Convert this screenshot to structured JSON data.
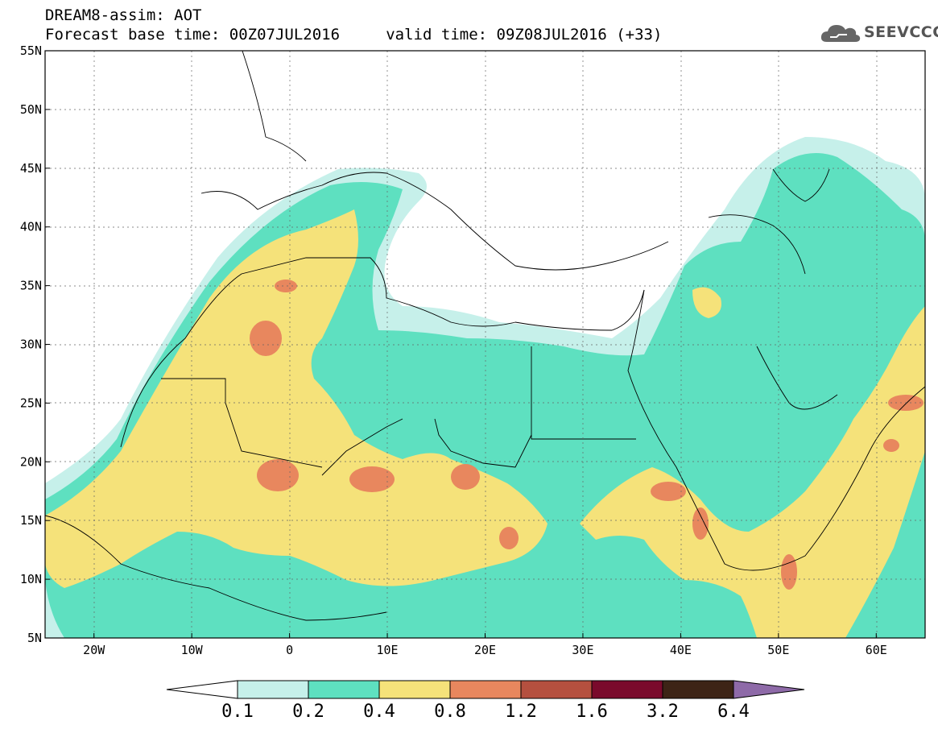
{
  "header": {
    "line1": "DREAM8-assim: AOT",
    "line2": "Forecast base time: 00Z07JUL2016     valid time: 09Z08JUL2016 (+33)"
  },
  "logo": {
    "text": "SEEVCCC",
    "icon": "cloud-logo-icon"
  },
  "map": {
    "lat_labels": [
      "55N",
      "50N",
      "45N",
      "40N",
      "35N",
      "30N",
      "25N",
      "20N",
      "15N",
      "10N",
      "5N"
    ],
    "lon_labels": [
      "20W",
      "10W",
      "0",
      "10E",
      "20E",
      "30E",
      "40E",
      "50E",
      "60E"
    ],
    "lat_range": [
      5,
      55
    ],
    "lon_range": [
      -25,
      65
    ]
  },
  "colorbar": {
    "labels": [
      "0.1",
      "0.2",
      "0.4",
      "0.8",
      "1.2",
      "1.6",
      "3.2",
      "6.4"
    ],
    "colors": [
      "#ffffff",
      "#c6f0ea",
      "#5ee0c0",
      "#f5e27a",
      "#e8875e",
      "#b5503f",
      "#7a0a2c",
      "#3d2416",
      "#8e6aa8"
    ]
  },
  "colors": {
    "light_teal": "#c6f0ea",
    "teal": "#5ee0c0",
    "yellow": "#f5e27a",
    "salmon": "#e8875e",
    "background": "#ffffff"
  }
}
